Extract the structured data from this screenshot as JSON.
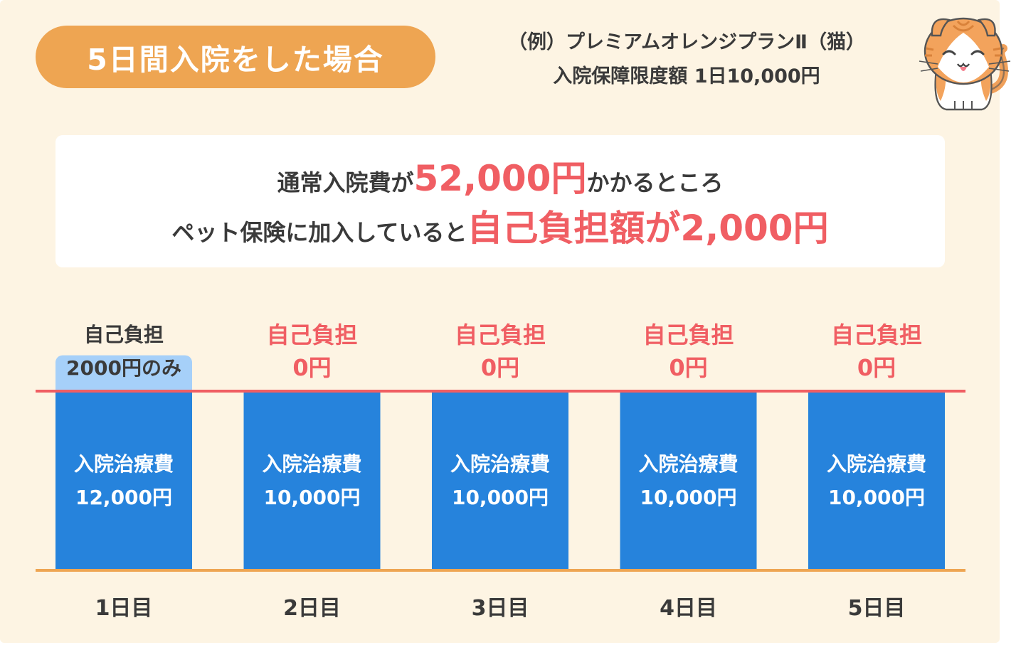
{
  "header": {
    "scenario_label": "5日間入院をした場合",
    "plan_line1": "（例）プレミアムオレンジプランⅡ（猫）",
    "plan_line2": "入院保障限度額 1日10,000円"
  },
  "summary": {
    "line1_pre": "通常入院費が",
    "line1_highlight": "52,000円",
    "line1_post": "かかるところ",
    "line2_pre": "ペット保険に加入していると",
    "line2_highlight": "自己負担額が2,000円"
  },
  "colors": {
    "bar": "#2683dc",
    "copay_bar": "#a6d0f9",
    "limit_line": "#f05e63",
    "baseline": "#eea552",
    "highlight": "#f05e63",
    "pill": "#eea552"
  },
  "chart_data": {
    "type": "bar",
    "categories": [
      "1日目",
      "2日目",
      "3日目",
      "4日目",
      "5日目"
    ],
    "limit": 10000,
    "series": [
      {
        "values": [
          12000,
          10000,
          10000,
          10000,
          10000
        ],
        "labels": [
          [
            "入院治療費",
            "12,000円"
          ],
          [
            "入院治療費",
            "10,000円"
          ],
          [
            "入院治療費",
            "10,000円"
          ],
          [
            "入院治療費",
            "10,000円"
          ],
          [
            "入院治療費",
            "10,000円"
          ]
        ]
      },
      {
        "values": [
          2000,
          0,
          0,
          0,
          0
        ],
        "labels": [
          [
            "自己負担",
            "2000円のみ"
          ],
          [
            "自己負担",
            "0円"
          ],
          [
            "自己負担",
            "0円"
          ],
          [
            "自己負担",
            "0円"
          ],
          [
            "自己負担",
            "0円"
          ]
        ]
      }
    ]
  }
}
